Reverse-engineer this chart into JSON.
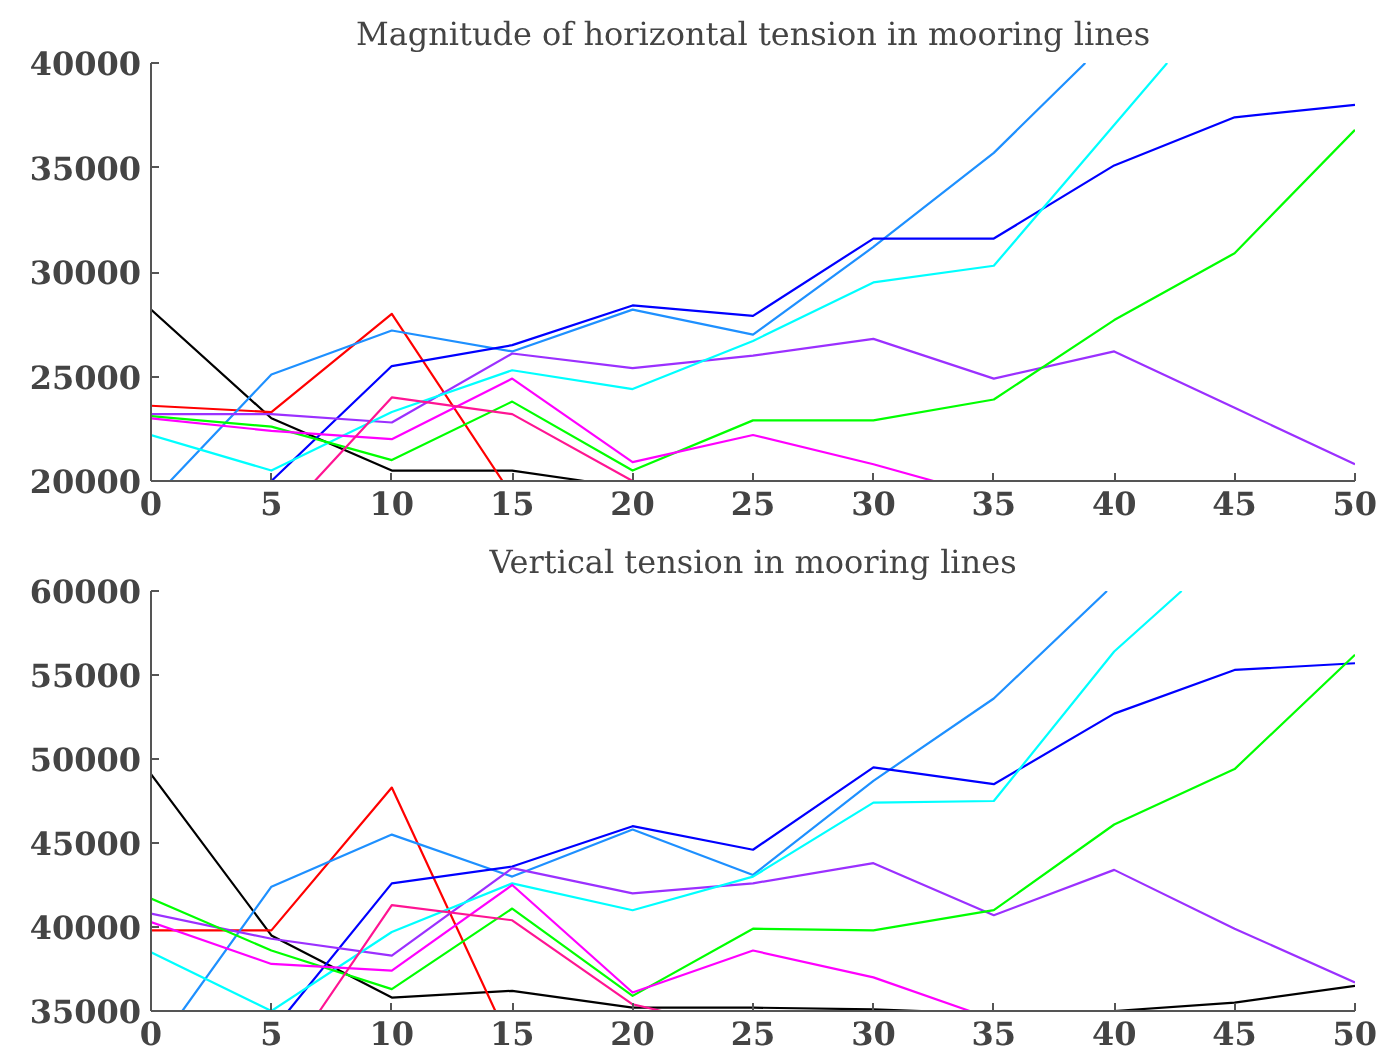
{
  "chart_data": [
    {
      "type": "line",
      "title": "Magnitude of horizontal tension in mooring lines",
      "xlim": [
        0,
        50
      ],
      "xticks": [
        0,
        5,
        10,
        15,
        20,
        25,
        30,
        35,
        40,
        45,
        50
      ],
      "ylim": [
        20000,
        40000
      ],
      "yticks": [
        20000,
        25000,
        30000,
        35000,
        40000
      ],
      "series": [
        {
          "color": "#000000",
          "x": [
            0,
            5,
            10,
            15,
            18
          ],
          "values": [
            28200,
            23000,
            20500,
            20500,
            20000
          ]
        },
        {
          "color": "#ff0000",
          "x": [
            0,
            5,
            10,
            14.6
          ],
          "values": [
            23600,
            23300,
            28000,
            20000
          ]
        },
        {
          "color": "#1e90ff",
          "x": [
            0.8,
            5,
            10,
            15,
            20,
            25,
            30,
            35,
            38.8
          ],
          "values": [
            20000,
            25100,
            27200,
            26200,
            28200,
            27000,
            31200,
            35700,
            40000
          ]
        },
        {
          "color": "#0000ff",
          "x": [
            5,
            10,
            15,
            20,
            25,
            30,
            35,
            40,
            45,
            50
          ],
          "values": [
            20000,
            25500,
            26500,
            28400,
            27900,
            31600,
            31600,
            35100,
            37400,
            38000
          ]
        },
        {
          "color": "#9b30ff",
          "x": [
            0,
            5,
            10,
            15,
            20,
            25,
            30,
            35,
            40,
            45,
            50
          ],
          "values": [
            23200,
            23200,
            22800,
            26100,
            25400,
            26000,
            26800,
            24900,
            26200,
            23500,
            20800
          ]
        },
        {
          "color": "#00ffff",
          "x": [
            0,
            5,
            10,
            15,
            20,
            25,
            30,
            35,
            42.2
          ],
          "values": [
            22200,
            20500,
            23300,
            25300,
            24400,
            26700,
            29500,
            30300,
            40000
          ]
        },
        {
          "color": "#00ff00",
          "x": [
            0,
            5,
            10,
            15,
            20,
            25,
            30,
            35,
            40,
            45,
            50
          ],
          "values": [
            23100,
            22600,
            21000,
            23800,
            20500,
            22900,
            22900,
            23900,
            27700,
            30900,
            36800
          ]
        },
        {
          "color": "#ff00ff",
          "x": [
            0,
            5,
            10,
            15,
            20,
            25,
            30,
            32.5
          ],
          "values": [
            23000,
            22400,
            22000,
            24900,
            20900,
            22200,
            20800,
            20000
          ]
        },
        {
          "color": "#ff1493",
          "x": [
            6.8,
            10,
            15,
            20
          ],
          "values": [
            20000,
            24000,
            23200,
            20000
          ]
        }
      ]
    },
    {
      "type": "line",
      "title": "Vertical tension in mooring lines",
      "xlim": [
        0,
        50
      ],
      "xticks": [
        0,
        5,
        10,
        15,
        20,
        25,
        30,
        35,
        40,
        45,
        50
      ],
      "ylim": [
        35000,
        60000
      ],
      "yticks": [
        35000,
        40000,
        45000,
        50000,
        55000,
        60000
      ],
      "series": [
        {
          "color": "#000000",
          "x": [
            0,
            5,
            10,
            15,
            20,
            25,
            30,
            32,
            35,
            40,
            45,
            50
          ],
          "values": [
            49100,
            39500,
            35800,
            36200,
            35200,
            35200,
            35100,
            35000,
            null,
            35000,
            35500,
            36500
          ]
        },
        {
          "color": "#ff0000",
          "x": [
            0,
            5,
            10,
            14.3
          ],
          "values": [
            39800,
            39800,
            48300,
            35000
          ]
        },
        {
          "color": "#1e90ff",
          "x": [
            1.3,
            5,
            10,
            15,
            20,
            25,
            30,
            35,
            39.7
          ],
          "values": [
            35000,
            42400,
            45500,
            43000,
            45800,
            43100,
            48700,
            53600,
            60000
          ]
        },
        {
          "color": "#0000ff",
          "x": [
            5.7,
            10,
            15,
            20,
            25,
            30,
            35,
            40,
            45,
            50
          ],
          "values": [
            35000,
            42600,
            43600,
            46000,
            44600,
            49500,
            48500,
            52700,
            55300,
            55700
          ]
        },
        {
          "color": "#9b30ff",
          "x": [
            0,
            5,
            10,
            15,
            20,
            25,
            30,
            35,
            40,
            45,
            50
          ],
          "values": [
            40800,
            39300,
            38300,
            43500,
            42000,
            42600,
            43800,
            40700,
            43400,
            39900,
            36700
          ]
        },
        {
          "color": "#00ffff",
          "x": [
            0,
            5,
            10,
            15,
            20,
            25,
            30,
            35,
            40,
            42.8
          ],
          "values": [
            38500,
            35000,
            39700,
            42600,
            41000,
            43000,
            47400,
            47500,
            56400,
            60000
          ]
        },
        {
          "color": "#00ff00",
          "x": [
            0,
            5,
            10,
            15,
            20,
            25,
            30,
            35,
            40,
            45,
            50
          ],
          "values": [
            41700,
            38600,
            36300,
            41100,
            35900,
            39900,
            39800,
            41000,
            46100,
            49400,
            56200
          ]
        },
        {
          "color": "#ff00ff",
          "x": [
            0,
            5,
            10,
            15,
            20,
            25,
            30,
            34.0
          ],
          "values": [
            40300,
            37800,
            37400,
            42500,
            36100,
            38600,
            37000,
            35000
          ]
        },
        {
          "color": "#ff1493",
          "x": [
            7.0,
            10,
            15,
            20,
            21.2
          ],
          "values": [
            35000,
            41300,
            40400,
            35400,
            35000
          ]
        }
      ]
    }
  ]
}
